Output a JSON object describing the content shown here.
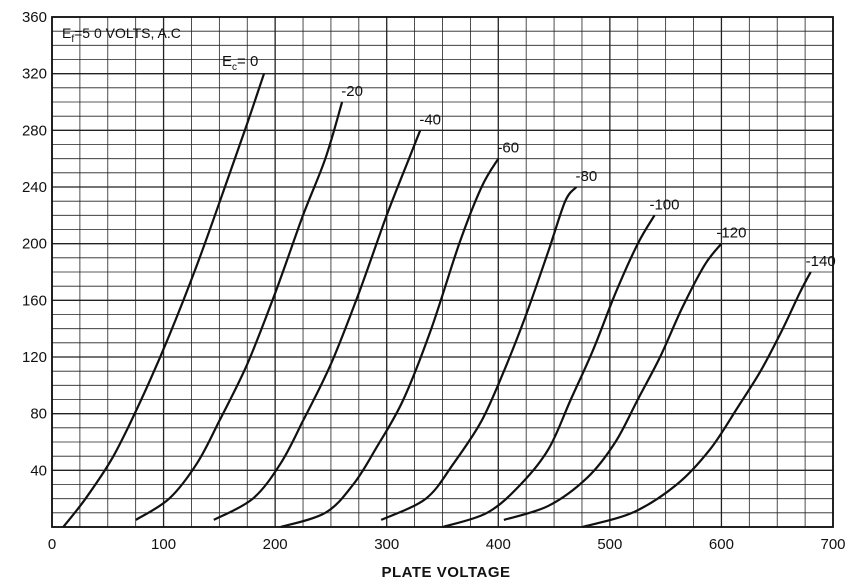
{
  "chart_data": {
    "type": "line",
    "title": "",
    "xlabel": "PLATE VOLTAGE",
    "ylabel": "",
    "xlim": [
      0,
      700
    ],
    "ylim": [
      0,
      360
    ],
    "x_ticks": [
      "0",
      "100",
      "200",
      "300",
      "400",
      "500",
      "600",
      "700"
    ],
    "y_ticks": [
      "40",
      "80",
      "120",
      "160",
      "200",
      "240",
      "280",
      "320",
      "360"
    ],
    "grid": true,
    "annotations": {
      "filament": {
        "main": "E",
        "sub": "f",
        "rest": "=5 0  VOLTS, A.C"
      },
      "grid_voltage": {
        "main": "E",
        "sub": "c",
        "rest": "= 0"
      }
    },
    "series": [
      {
        "name": "= 0",
        "x": [
          10,
          30,
          55,
          80,
          105,
          130,
          155,
          175,
          190
        ],
        "y": [
          0,
          20,
          50,
          90,
          135,
          185,
          240,
          285,
          320
        ]
      },
      {
        "name": "-20",
        "x": [
          75,
          105,
          130,
          150,
          175,
          200,
          225,
          245,
          260
        ],
        "y": [
          5,
          20,
          45,
          75,
          115,
          165,
          220,
          260,
          300
        ]
      },
      {
        "name": "-40",
        "x": [
          145,
          180,
          205,
          225,
          250,
          275,
          300,
          320,
          330
        ],
        "y": [
          5,
          20,
          45,
          75,
          115,
          165,
          220,
          260,
          280
        ]
      },
      {
        "name": "-60",
        "x": [
          205,
          245,
          270,
          290,
          315,
          340,
          365,
          385,
          400
        ],
        "y": [
          0,
          10,
          30,
          55,
          90,
          140,
          200,
          240,
          260
        ]
      },
      {
        "name": "-80",
        "x": [
          295,
          335,
          360,
          385,
          405,
          425,
          445,
          460,
          470
        ],
        "y": [
          5,
          20,
          45,
          75,
          110,
          150,
          195,
          230,
          240
        ]
      },
      {
        "name": "-100",
        "x": [
          350,
          390,
          420,
          445,
          465,
          485,
          505,
          525,
          540
        ],
        "y": [
          0,
          10,
          30,
          55,
          90,
          125,
          165,
          200,
          220
        ]
      },
      {
        "name": "-120",
        "x": [
          405,
          445,
          480,
          505,
          525,
          545,
          565,
          585,
          600
        ],
        "y": [
          5,
          15,
          35,
          60,
          90,
          120,
          155,
          185,
          200
        ]
      },
      {
        "name": "-140",
        "x": [
          475,
          520,
          560,
          590,
          615,
          635,
          655,
          670,
          680
        ],
        "y": [
          0,
          10,
          30,
          55,
          85,
          110,
          140,
          165,
          180
        ]
      }
    ]
  }
}
